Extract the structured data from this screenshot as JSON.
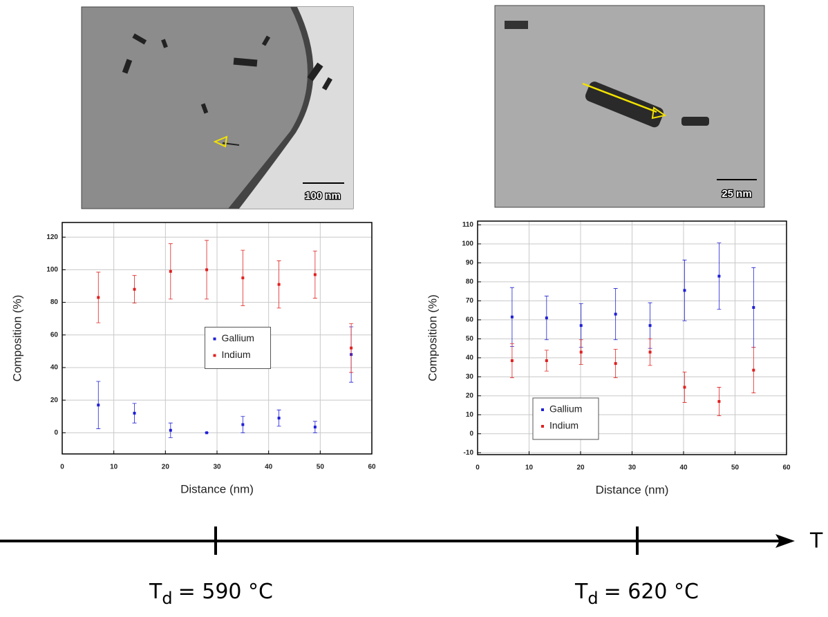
{
  "images": [
    {
      "scale_bar": "100 nm"
    },
    {
      "scale_bar": "25 nm"
    }
  ],
  "chart_data": [
    {
      "type": "scatter",
      "x_label": "Distance (nm)",
      "y_label": "Composition (%)",
      "x": [
        7,
        14,
        21,
        28,
        35,
        42,
        49,
        56
      ],
      "series": [
        {
          "name": "Gallium",
          "color": "#1f1fd6",
          "values": [
            17,
            12,
            1.5,
            0,
            5,
            9,
            3.5,
            48
          ],
          "errors": [
            14.5,
            6,
            4.5,
            0,
            5,
            5,
            3.5,
            17
          ]
        },
        {
          "name": "Indium",
          "color": "#e02020",
          "values": [
            83,
            88,
            99,
            100,
            95,
            91,
            97,
            52
          ],
          "errors": [
            15.5,
            8.5,
            17,
            18,
            17,
            14.5,
            14.5,
            15
          ]
        }
      ],
      "xlim": [
        0,
        60
      ],
      "xticks": [
        0,
        10,
        20,
        30,
        40,
        50,
        60
      ],
      "ylim": [
        -13,
        129
      ],
      "yticks": [
        0,
        20,
        40,
        60,
        80,
        100,
        120
      ],
      "grid": true,
      "legend": "center"
    },
    {
      "type": "scatter",
      "x_label": "Distance (nm)",
      "y_label": "Composition (%)",
      "x": [
        6.7,
        13.4,
        20.1,
        26.8,
        33.5,
        40.2,
        46.9,
        53.6
      ],
      "series": [
        {
          "name": "Gallium",
          "color": "#1f1fd6",
          "values": [
            61.5,
            61,
            57,
            63,
            57,
            75.5,
            83,
            66.5
          ],
          "errors": [
            15.5,
            11.5,
            11.5,
            13.5,
            12,
            16,
            17.5,
            21
          ]
        },
        {
          "name": "Indium",
          "color": "#e02020",
          "values": [
            38.5,
            38.5,
            43,
            37,
            43,
            24.5,
            17,
            33.5
          ],
          "errors": [
            9,
            5.5,
            6.5,
            7.5,
            7,
            8,
            7.5,
            12
          ]
        }
      ],
      "xlim": [
        0,
        60
      ],
      "xticks": [
        0,
        10,
        20,
        30,
        40,
        50,
        60
      ],
      "ylim": [
        -11,
        112
      ],
      "yticks": [
        -10,
        0,
        10,
        20,
        30,
        40,
        50,
        60,
        70,
        80,
        90,
        100,
        110
      ],
      "grid": true,
      "legend": "lower left"
    }
  ],
  "timeline": {
    "axis_label": "T",
    "marks": [
      {
        "symbol": "T",
        "subscript": "d",
        "text": "= 590 °C"
      },
      {
        "symbol": "T",
        "subscript": "d",
        "text": "= 620 °C"
      }
    ]
  }
}
